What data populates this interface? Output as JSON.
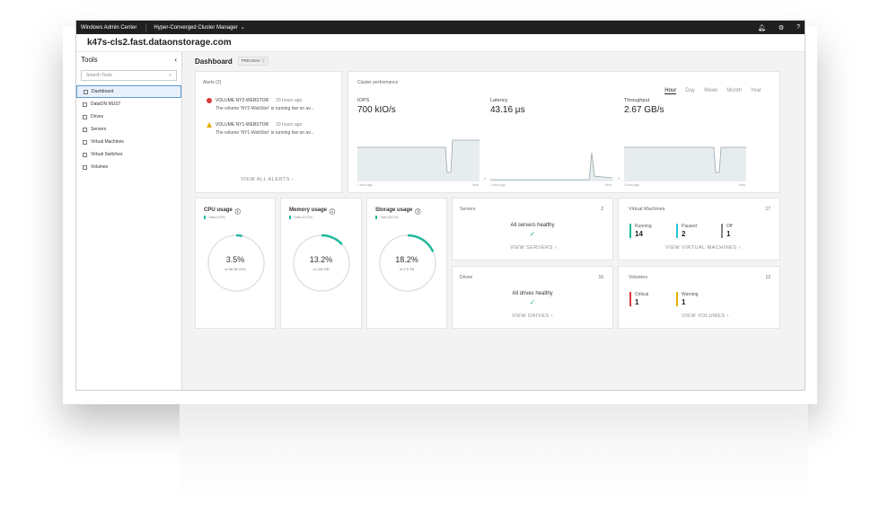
{
  "topbar": {
    "app": "Windows Admin Center",
    "manager": "Hyper-Converged Cluster Manager"
  },
  "host": "k47s-cls2.fast.dataonstorage.com",
  "sidebar": {
    "title": "Tools",
    "search_placeholder": "Search Tools",
    "items": [
      "Dashboard",
      "DataON MUST",
      "Drives",
      "Servers",
      "Virtual Machines",
      "Virtual Switches",
      "Volumes"
    ]
  },
  "dashboard": {
    "title": "Dashboard",
    "badge": "PREVIEW"
  },
  "alerts": {
    "title": "Alerts (2)",
    "items": [
      {
        "name": "VOLUME NY2-WEBSTOR",
        "time": "20 hours ago",
        "body": "The volume 'NY2-WebStor' is running low on av...",
        "severity": "critical"
      },
      {
        "name": "VOLUME NY1-WEBSTOR",
        "time": "20 hours ago",
        "body": "The volume 'NY1-WebStor' is running low on av...",
        "severity": "warning"
      }
    ],
    "link": "VIEW ALL ALERTS"
  },
  "performance": {
    "title": "Cluster performance",
    "ranges": [
      "Hour",
      "Day",
      "Week",
      "Month",
      "Year"
    ],
    "selected": "Hour",
    "iops": {
      "label": "IOPS",
      "value": "700 kIO/s"
    },
    "latency": {
      "label": "Latency",
      "value": "43.16 µs"
    },
    "throughput": {
      "label": "Throughput",
      "value": "2.67 GB/s"
    },
    "axis_start": "1 hour ago",
    "axis_end": "Now",
    "axis_zero": "0"
  },
  "usage": {
    "cpu": {
      "title": "CPU usage",
      "sub": "Total (3.5%)",
      "value": "3.5%",
      "detail": "of 56.06 GHz",
      "pct": 3.5
    },
    "memory": {
      "title": "Memory usage",
      "sub": "Total (13.2%)",
      "value": "13.2%",
      "detail": "of 128 GB",
      "pct": 13.2
    },
    "storage": {
      "title": "Storage usage",
      "sub": "Total (18.2%)",
      "value": "18.2%",
      "detail": "of 2.5 TB",
      "pct": 18.2
    }
  },
  "servers": {
    "title": "Servers",
    "count": "2",
    "status": "All servers healthy",
    "link": "VIEW SERVERS"
  },
  "drives": {
    "title": "Drives",
    "count": "16",
    "status": "All drives healthy",
    "link": "VIEW DRIVES"
  },
  "vms": {
    "title": "Virtual Machines",
    "count": "17",
    "stats": [
      {
        "label": "Running",
        "value": "14",
        "color": "#1fb89d"
      },
      {
        "label": "Paused",
        "value": "2",
        "color": "#26c6da"
      },
      {
        "label": "Off",
        "value": "1",
        "color": "#888888"
      }
    ],
    "link": "VIEW VIRTUAL MACHINES"
  },
  "volumes": {
    "title": "Volumes",
    "count": "12",
    "stats": [
      {
        "label": "Critical",
        "value": "1",
        "color": "#d93b3b"
      },
      {
        "label": "Warning",
        "value": "1",
        "color": "#e2b100"
      }
    ],
    "link": "VIEW VOLUMES"
  },
  "colors": {
    "accent": "#1fb89d",
    "chart_fill": "#e7ecef",
    "chart_line": "#9aa7ad"
  }
}
